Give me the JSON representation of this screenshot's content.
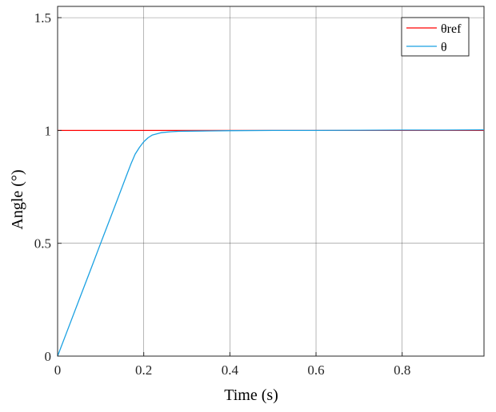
{
  "chart_data": {
    "type": "line",
    "title": "",
    "xlabel": "Time (s)",
    "ylabel": "Angle (°)",
    "xlim": [
      0,
      0.99
    ],
    "ylim": [
      0,
      1.55
    ],
    "xticks": [
      0,
      0.2,
      0.4,
      0.6,
      0.8
    ],
    "xtick_labels": [
      "0",
      "0.2",
      "0.4",
      "0.6",
      "0.8"
    ],
    "yticks": [
      0,
      0.5,
      1,
      1.5
    ],
    "ytick_labels": [
      "0",
      "0.5",
      "1",
      "1.5"
    ],
    "grid": true,
    "legend_position": "top-right",
    "series": [
      {
        "name": "θref",
        "color": "#ff0000",
        "x": [
          0,
          0.99
        ],
        "y": [
          1,
          1
        ]
      },
      {
        "name": "θ",
        "color": "#1ba1e2",
        "x": [
          0,
          0.02,
          0.05,
          0.08,
          0.1,
          0.12,
          0.14,
          0.16,
          0.17,
          0.18,
          0.19,
          0.2,
          0.21,
          0.22,
          0.24,
          0.26,
          0.28,
          0.3,
          0.35,
          0.4,
          0.5,
          0.6,
          0.7,
          0.8,
          0.9,
          0.99
        ],
        "y": [
          0,
          0.1,
          0.25,
          0.4,
          0.5,
          0.6,
          0.7,
          0.8,
          0.85,
          0.895,
          0.925,
          0.95,
          0.968,
          0.98,
          0.99,
          0.994,
          0.996,
          0.997,
          0.998,
          0.999,
          1.0,
          1.0,
          1.001,
          1.002,
          1.002,
          1.003
        ]
      }
    ]
  }
}
